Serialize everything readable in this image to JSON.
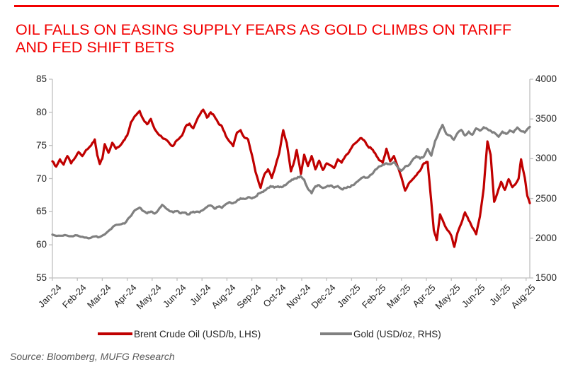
{
  "page": {
    "title": "OIL FALLS ON EASING SUPPLY FEARS AS GOLD CLIMBS ON TARIFF\nAND FED SHIFT BETS",
    "title_color": "#F20000",
    "rule_color": "#F20000",
    "source": "Source: Bloomberg, MUFG Research"
  },
  "chart_data": {
    "type": "line",
    "title": "OIL FALLS ON EASING SUPPLY FEARS AS GOLD CLIMBS ON TARIFF AND FED SHIFT BETS",
    "xlabel": "",
    "ylabel_left": "",
    "ylabel_right": "",
    "grid": false,
    "legend_position": "bottom",
    "axis_color": "#BFBFBF",
    "x_axis": {
      "labels": [
        "Jan-24",
        "Feb-24",
        "Mar-24",
        "Apr-24",
        "May-24",
        "Jun-24",
        "Jul-24",
        "Aug-24",
        "Sep-24",
        "Oct-24",
        "Nov-24",
        "Dec-24",
        "Jan-25",
        "Feb-25",
        "Mar-25",
        "Apr-25",
        "May-25",
        "Jun-25",
        "Jul-25",
        "Aug-25"
      ],
      "domain_months": 19.15
    },
    "y_axis_left": {
      "min": 55,
      "max": 85,
      "ticks": [
        55,
        60,
        65,
        70,
        75,
        80,
        85
      ]
    },
    "y_axis_right": {
      "min": 1500,
      "max": 4000,
      "ticks": [
        1500,
        2000,
        2500,
        3000,
        3500,
        4000
      ]
    },
    "series": [
      {
        "name": "Brent Crude Oil (USD/b, LHS)",
        "axis": "left",
        "color": "#C00000",
        "points": [
          [
            0,
            72.6
          ],
          [
            0.15,
            71.8
          ],
          [
            0.3,
            72.9
          ],
          [
            0.45,
            72.1
          ],
          [
            0.6,
            73.4
          ],
          [
            0.75,
            72.3
          ],
          [
            0.9,
            73.1
          ],
          [
            1.05,
            74.0
          ],
          [
            1.2,
            73.4
          ],
          [
            1.35,
            74.3
          ],
          [
            1.55,
            75.0
          ],
          [
            1.7,
            75.9
          ],
          [
            1.8,
            73.5
          ],
          [
            1.9,
            72.2
          ],
          [
            2.0,
            73.0
          ],
          [
            2.1,
            75.2
          ],
          [
            2.25,
            73.9
          ],
          [
            2.4,
            75.4
          ],
          [
            2.55,
            74.5
          ],
          [
            2.7,
            74.9
          ],
          [
            2.85,
            75.7
          ],
          [
            3.0,
            76.5
          ],
          [
            3.15,
            78.5
          ],
          [
            3.3,
            79.4
          ],
          [
            3.5,
            80.2
          ],
          [
            3.65,
            78.9
          ],
          [
            3.8,
            78.2
          ],
          [
            3.95,
            79.0
          ],
          [
            4.1,
            77.5
          ],
          [
            4.25,
            76.7
          ],
          [
            4.4,
            76.2
          ],
          [
            4.55,
            75.9
          ],
          [
            4.7,
            75.3
          ],
          [
            4.83,
            74.9
          ],
          [
            5.0,
            75.8
          ],
          [
            5.2,
            76.5
          ],
          [
            5.35,
            77.9
          ],
          [
            5.5,
            78.3
          ],
          [
            5.65,
            77.6
          ],
          [
            5.85,
            79.3
          ],
          [
            6.05,
            80.4
          ],
          [
            6.2,
            79.2
          ],
          [
            6.35,
            80.0
          ],
          [
            6.5,
            79.4
          ],
          [
            6.65,
            78.4
          ],
          [
            6.8,
            77.9
          ],
          [
            6.95,
            76.5
          ],
          [
            7.1,
            75.6
          ],
          [
            7.25,
            74.9
          ],
          [
            7.4,
            76.9
          ],
          [
            7.55,
            77.3
          ],
          [
            7.7,
            76.2
          ],
          [
            7.85,
            75.9
          ],
          [
            8.0,
            73.6
          ],
          [
            8.15,
            71.0
          ],
          [
            8.35,
            68.6
          ],
          [
            8.5,
            70.6
          ],
          [
            8.65,
            71.4
          ],
          [
            8.8,
            70.1
          ],
          [
            8.95,
            71.9
          ],
          [
            9.1,
            73.9
          ],
          [
            9.26,
            77.3
          ],
          [
            9.4,
            75.4
          ],
          [
            9.57,
            71.1
          ],
          [
            9.7,
            72.6
          ],
          [
            9.8,
            74.3
          ],
          [
            9.97,
            70.7
          ],
          [
            10.1,
            73.6
          ],
          [
            10.25,
            71.9
          ],
          [
            10.4,
            73.4
          ],
          [
            10.55,
            71.4
          ],
          [
            10.7,
            72.7
          ],
          [
            10.85,
            71.3
          ],
          [
            11.0,
            72.3
          ],
          [
            11.15,
            72.0
          ],
          [
            11.3,
            71.6
          ],
          [
            11.45,
            72.9
          ],
          [
            11.6,
            72.4
          ],
          [
            11.75,
            73.4
          ],
          [
            11.9,
            74.0
          ],
          [
            12.05,
            75.0
          ],
          [
            12.2,
            75.5
          ],
          [
            12.35,
            76.1
          ],
          [
            12.5,
            75.8
          ],
          [
            12.65,
            74.9
          ],
          [
            12.8,
            74.5
          ],
          [
            12.95,
            73.8
          ],
          [
            13.1,
            72.8
          ],
          [
            13.25,
            72.4
          ],
          [
            13.4,
            74.5
          ],
          [
            13.55,
            72.6
          ],
          [
            13.7,
            73.4
          ],
          [
            13.85,
            71.8
          ],
          [
            14.0,
            70.2
          ],
          [
            14.15,
            68.2
          ],
          [
            14.3,
            69.3
          ],
          [
            14.45,
            69.9
          ],
          [
            14.6,
            70.5
          ],
          [
            14.75,
            71.2
          ],
          [
            14.9,
            72.3
          ],
          [
            15.05,
            72.5
          ],
          [
            15.15,
            68.5
          ],
          [
            15.3,
            62.2
          ],
          [
            15.42,
            60.7
          ],
          [
            15.55,
            64.6
          ],
          [
            15.7,
            63.3
          ],
          [
            15.85,
            62.2
          ],
          [
            16.0,
            61.4
          ],
          [
            16.12,
            59.7
          ],
          [
            16.25,
            61.8
          ],
          [
            16.4,
            63.2
          ],
          [
            16.55,
            64.9
          ],
          [
            16.7,
            63.7
          ],
          [
            16.85,
            62.6
          ],
          [
            17.0,
            61.6
          ],
          [
            17.15,
            64.3
          ],
          [
            17.3,
            68.5
          ],
          [
            17.45,
            75.6
          ],
          [
            17.58,
            73.6
          ],
          [
            17.72,
            66.5
          ],
          [
            17.85,
            67.8
          ],
          [
            18.0,
            69.5
          ],
          [
            18.15,
            68.3
          ],
          [
            18.3,
            69.9
          ],
          [
            18.45,
            68.7
          ],
          [
            18.6,
            69.3
          ],
          [
            18.7,
            70.0
          ],
          [
            18.8,
            72.9
          ],
          [
            18.95,
            70.1
          ],
          [
            19.05,
            67.4
          ],
          [
            19.15,
            66.3
          ]
        ]
      },
      {
        "name": "Gold (USD/oz, RHS)",
        "axis": "right",
        "color": "#808080",
        "points": [
          [
            0,
            2045
          ],
          [
            0.25,
            2032
          ],
          [
            0.5,
            2040
          ],
          [
            0.75,
            2025
          ],
          [
            1.0,
            2035
          ],
          [
            1.2,
            2018
          ],
          [
            1.45,
            1998
          ],
          [
            1.7,
            2022
          ],
          [
            1.9,
            2015
          ],
          [
            2.1,
            2048
          ],
          [
            2.3,
            2105
          ],
          [
            2.5,
            2160
          ],
          [
            2.7,
            2172
          ],
          [
            2.9,
            2185
          ],
          [
            3.1,
            2265
          ],
          [
            3.3,
            2350
          ],
          [
            3.5,
            2385
          ],
          [
            3.65,
            2340
          ],
          [
            3.8,
            2312
          ],
          [
            3.95,
            2335
          ],
          [
            4.1,
            2310
          ],
          [
            4.25,
            2355
          ],
          [
            4.4,
            2420
          ],
          [
            4.55,
            2378
          ],
          [
            4.7,
            2340
          ],
          [
            4.85,
            2325
          ],
          [
            5.0,
            2342
          ],
          [
            5.15,
            2312
          ],
          [
            5.3,
            2322
          ],
          [
            5.45,
            2300
          ],
          [
            5.6,
            2325
          ],
          [
            5.75,
            2332
          ],
          [
            5.9,
            2326
          ],
          [
            6.05,
            2356
          ],
          [
            6.2,
            2392
          ],
          [
            6.35,
            2412
          ],
          [
            6.5,
            2372
          ],
          [
            6.65,
            2396
          ],
          [
            6.8,
            2382
          ],
          [
            6.95,
            2426
          ],
          [
            7.1,
            2455
          ],
          [
            7.25,
            2440
          ],
          [
            7.4,
            2470
          ],
          [
            7.55,
            2502
          ],
          [
            7.7,
            2494
          ],
          [
            7.85,
            2516
          ],
          [
            8.0,
            2500
          ],
          [
            8.15,
            2522
          ],
          [
            8.3,
            2565
          ],
          [
            8.45,
            2582
          ],
          [
            8.6,
            2622
          ],
          [
            8.75,
            2656
          ],
          [
            8.9,
            2636
          ],
          [
            9.05,
            2652
          ],
          [
            9.2,
            2642
          ],
          [
            9.35,
            2666
          ],
          [
            9.5,
            2712
          ],
          [
            9.65,
            2736
          ],
          [
            9.8,
            2752
          ],
          [
            9.95,
            2780
          ],
          [
            10.1,
            2736
          ],
          [
            10.25,
            2620
          ],
          [
            10.4,
            2565
          ],
          [
            10.55,
            2652
          ],
          [
            10.7,
            2666
          ],
          [
            10.85,
            2632
          ],
          [
            11.0,
            2650
          ],
          [
            11.15,
            2662
          ],
          [
            11.3,
            2636
          ],
          [
            11.45,
            2656
          ],
          [
            11.6,
            2616
          ],
          [
            11.75,
            2632
          ],
          [
            11.9,
            2642
          ],
          [
            12.05,
            2666
          ],
          [
            12.2,
            2706
          ],
          [
            12.35,
            2742
          ],
          [
            12.5,
            2772
          ],
          [
            12.65,
            2762
          ],
          [
            12.8,
            2802
          ],
          [
            12.95,
            2862
          ],
          [
            13.1,
            2902
          ],
          [
            13.25,
            2922
          ],
          [
            13.4,
            2942
          ],
          [
            13.55,
            2930
          ],
          [
            13.7,
            2955
          ],
          [
            13.85,
            2895
          ],
          [
            14.0,
            2848
          ],
          [
            14.15,
            2902
          ],
          [
            14.3,
            2918
          ],
          [
            14.45,
            2986
          ],
          [
            14.6,
            3032
          ],
          [
            14.75,
            3002
          ],
          [
            14.9,
            3028
          ],
          [
            15.05,
            3122
          ],
          [
            15.2,
            3038
          ],
          [
            15.35,
            3222
          ],
          [
            15.5,
            3330
          ],
          [
            15.65,
            3425
          ],
          [
            15.8,
            3312
          ],
          [
            15.95,
            3292
          ],
          [
            16.1,
            3238
          ],
          [
            16.25,
            3322
          ],
          [
            16.4,
            3362
          ],
          [
            16.55,
            3292
          ],
          [
            16.7,
            3342
          ],
          [
            16.85,
            3302
          ],
          [
            17.0,
            3382
          ],
          [
            17.15,
            3352
          ],
          [
            17.3,
            3396
          ],
          [
            17.45,
            3372
          ],
          [
            17.6,
            3346
          ],
          [
            17.75,
            3322
          ],
          [
            17.9,
            3276
          ],
          [
            18.05,
            3342
          ],
          [
            18.2,
            3312
          ],
          [
            18.35,
            3356
          ],
          [
            18.5,
            3332
          ],
          [
            18.65,
            3392
          ],
          [
            18.8,
            3346
          ],
          [
            18.95,
            3330
          ],
          [
            19.05,
            3372
          ],
          [
            19.15,
            3400
          ]
        ]
      }
    ]
  }
}
